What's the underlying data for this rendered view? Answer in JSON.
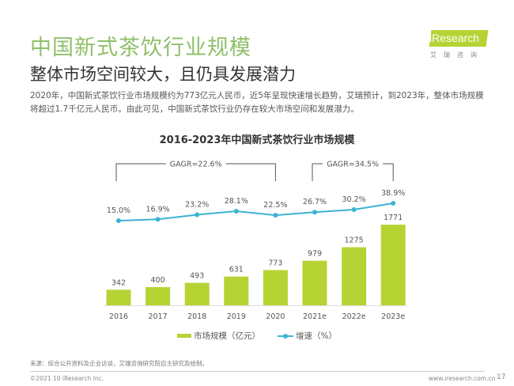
{
  "header": {
    "title": "中国新式茶饮行业规模",
    "subtitle": "整体市场空间较大，且仍具发展潜力",
    "description": "2020年，中国新式茶饮行业市场规模约为773亿元人民币，近5年呈现快速增长趋势，艾瑞预计，到2023年，整体市场规模将超过1.7千亿元人民币。由此可见，中国新式茶饮行业仍存在较大市场空间和发展潜力。"
  },
  "logo": {
    "word": "iResearch",
    "cn": "艾瑞咨询"
  },
  "chart_data": {
    "type": "bar+line",
    "title": "2016-2023年中国新式茶饮行业市场规模",
    "categories": [
      "2016",
      "2017",
      "2018",
      "2019",
      "2020",
      "2021e",
      "2022e",
      "2023e"
    ],
    "series": [
      {
        "name": "市场规模（亿元）",
        "type": "bar",
        "color": "#b6d334",
        "values": [
          342,
          400,
          493,
          631,
          773,
          979,
          1275,
          1771
        ],
        "labels": [
          "342",
          "400",
          "493",
          "631",
          "773",
          "979",
          "1275",
          "1771"
        ]
      },
      {
        "name": "增速（%）",
        "type": "line",
        "color": "#3db3d1",
        "values": [
          15.0,
          16.9,
          23.2,
          28.1,
          22.5,
          26.7,
          30.2,
          38.9
        ],
        "labels": [
          "15.0%",
          "16.9%",
          "23.2%",
          "28.1%",
          "22.5%",
          "26.7%",
          "30.2%",
          "38.9%"
        ]
      }
    ],
    "annotations": [
      {
        "text": "GAGR=22.6%",
        "from": "2016",
        "to": "2020"
      },
      {
        "text": "GAGR=34.5%",
        "from": "2021e",
        "to": "2023e"
      }
    ],
    "legend": "bottom",
    "grid": false
  },
  "footer": {
    "source": "来源：综合公开资料及企业访谈，艾瑞咨询研究院自主研究及绘制。",
    "copyright": "©2021.10 iResearch Inc.",
    "site": "www.iresearch.com.cn",
    "page": "17"
  }
}
